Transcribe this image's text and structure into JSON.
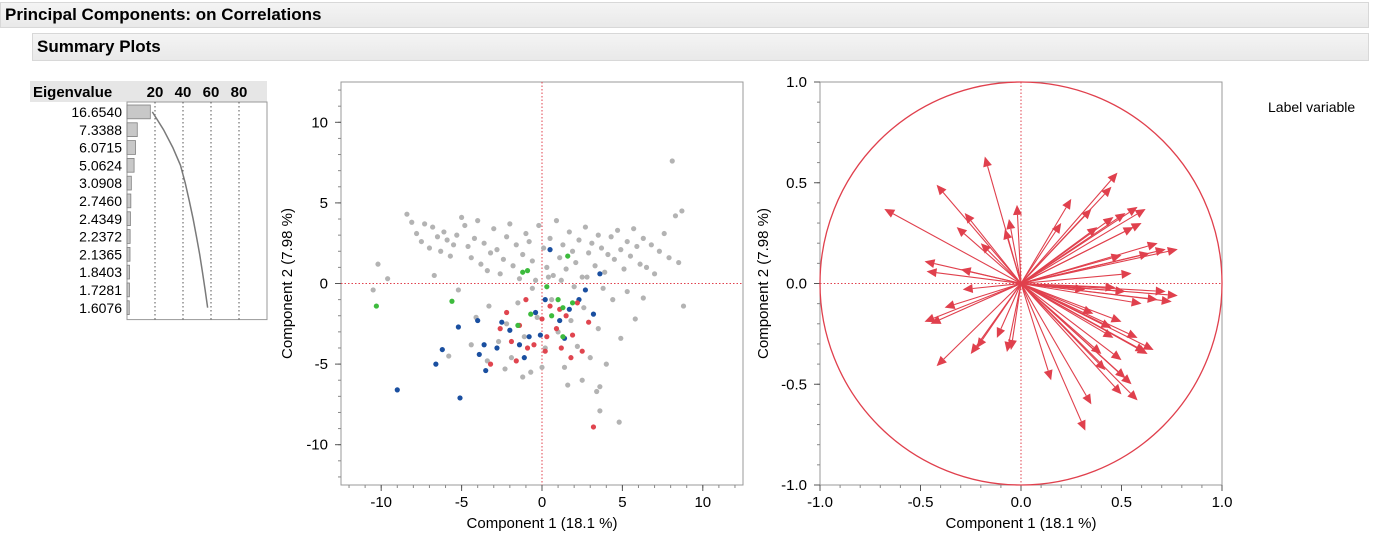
{
  "header": {
    "title": "Principal Components: on Correlations",
    "summary_title": "Summary Plots"
  },
  "label_variables": "Label variable",
  "colors": {
    "gray": "#b3b3b3",
    "blue": "#1a4fa0",
    "red": "#e0454f",
    "green": "#3dbb3d",
    "loading": "#e0404d",
    "refline": "#e0404d"
  },
  "chart_data": [
    {
      "type": "bar",
      "title": "Eigenvalue",
      "header_ticks": [
        "20",
        "40",
        "60",
        "80"
      ],
      "eigenvalues": [
        "16.6540",
        "7.3388",
        "6.0715",
        "5.0624",
        "3.0908",
        "2.7460",
        "2.4349",
        "2.2372",
        "2.1365",
        "1.8403",
        "1.7281",
        "1.6076"
      ],
      "values": [
        16.654,
        7.3388,
        6.0715,
        5.0624,
        3.0908,
        2.746,
        2.4349,
        2.2372,
        2.1365,
        1.8403,
        1.7281,
        1.6076
      ],
      "cumulative_percent": [
        18.1,
        26.1,
        32.7,
        38.2,
        41.6,
        44.5,
        47.2,
        49.6,
        51.9,
        53.9,
        55.8,
        57.6
      ],
      "xlim": [
        0,
        100
      ]
    },
    {
      "type": "scatter",
      "xlabel": "Component 1  (18.1 %)",
      "ylabel": "Component 2  (7.98 %)",
      "xlim": [
        -12.5,
        12.5
      ],
      "ylim": [
        -12.5,
        12.5
      ],
      "x_ticks": [
        "-10",
        "-5",
        "0",
        "5",
        "10"
      ],
      "y_ticks": [
        "-10",
        "-5",
        "0",
        "5",
        "10"
      ],
      "series": [
        {
          "color": "gray",
          "points": [
            [
              -10.2,
              1.2
            ],
            [
              -9.6,
              0.3
            ],
            [
              -8.4,
              4.3
            ],
            [
              -8.1,
              3.8
            ],
            [
              -7.8,
              3.1
            ],
            [
              -7.5,
              2.6
            ],
            [
              -7.3,
              3.7
            ],
            [
              -7.0,
              2.2
            ],
            [
              -6.8,
              3.5
            ],
            [
              -6.5,
              2.9
            ],
            [
              -6.3,
              2.0
            ],
            [
              -6.1,
              3.2
            ],
            [
              -5.9,
              2.7
            ],
            [
              -5.7,
              1.7
            ],
            [
              -5.5,
              2.4
            ],
            [
              -5.3,
              3.0
            ],
            [
              -5.0,
              4.1
            ],
            [
              -4.8,
              3.6
            ],
            [
              -4.6,
              2.3
            ],
            [
              -4.4,
              1.6
            ],
            [
              -4.2,
              2.8
            ],
            [
              -4.0,
              3.9
            ],
            [
              -3.8,
              1.2
            ],
            [
              -3.6,
              2.5
            ],
            [
              -3.4,
              0.8
            ],
            [
              -3.2,
              1.9
            ],
            [
              -3.0,
              3.4
            ],
            [
              -2.8,
              2.1
            ],
            [
              -2.6,
              0.6
            ],
            [
              -2.4,
              1.5
            ],
            [
              -2.2,
              2.9
            ],
            [
              -2.0,
              3.7
            ],
            [
              -1.8,
              1.1
            ],
            [
              -1.6,
              2.4
            ],
            [
              -1.4,
              0.3
            ],
            [
              -1.2,
              1.8
            ],
            [
              -1.0,
              3.1
            ],
            [
              -0.8,
              2.6
            ],
            [
              -0.6,
              1.4
            ],
            [
              -0.4,
              0.2
            ],
            [
              -0.2,
              3.6
            ],
            [
              0.1,
              2.2
            ],
            [
              0.3,
              1.0
            ],
            [
              0.5,
              2.8
            ],
            [
              0.7,
              0.5
            ],
            [
              0.9,
              3.9
            ],
            [
              1.1,
              1.6
            ],
            [
              1.3,
              2.4
            ],
            [
              1.5,
              0.9
            ],
            [
              1.7,
              3.2
            ],
            [
              1.9,
              2.0
            ],
            [
              2.1,
              1.3
            ],
            [
              2.3,
              2.7
            ],
            [
              2.5,
              0.4
            ],
            [
              2.7,
              3.5
            ],
            [
              2.9,
              1.9
            ],
            [
              3.1,
              2.5
            ],
            [
              3.3,
              1.1
            ],
            [
              3.5,
              3.0
            ],
            [
              3.7,
              2.2
            ],
            [
              3.9,
              0.7
            ],
            [
              4.1,
              1.8
            ],
            [
              4.3,
              2.9
            ],
            [
              4.5,
              1.5
            ],
            [
              4.7,
              3.3
            ],
            [
              4.9,
              2.1
            ],
            [
              5.1,
              0.9
            ],
            [
              5.3,
              2.6
            ],
            [
              5.5,
              1.7
            ],
            [
              5.7,
              3.4
            ],
            [
              5.9,
              2.3
            ],
            [
              6.1,
              1.2
            ],
            [
              6.3,
              2.8
            ],
            [
              6.5,
              1.0
            ],
            [
              6.8,
              2.4
            ],
            [
              7.0,
              0.6
            ],
            [
              7.3,
              2.0
            ],
            [
              7.6,
              3.1
            ],
            [
              7.9,
              1.6
            ],
            [
              8.1,
              7.6
            ],
            [
              8.3,
              4.2
            ],
            [
              8.5,
              1.3
            ],
            [
              8.7,
              4.5
            ],
            [
              8.8,
              -1.4
            ],
            [
              -10.5,
              -0.4
            ],
            [
              -6.7,
              0.5
            ],
            [
              -5.2,
              -0.4
            ],
            [
              -4.1,
              -2.1
            ],
            [
              -3.3,
              -1.4
            ],
            [
              -2.7,
              -3.6
            ],
            [
              -2.2,
              -2.5
            ],
            [
              -1.9,
              -4.6
            ],
            [
              -1.5,
              -1.2
            ],
            [
              -1.1,
              -3.3
            ],
            [
              -0.7,
              -5.5
            ],
            [
              -0.3,
              -2.1
            ],
            [
              0.2,
              -4.0
            ],
            [
              0.6,
              -1.0
            ],
            [
              1.0,
              -3.0
            ],
            [
              1.4,
              -5.2
            ],
            [
              1.8,
              -2.3
            ],
            [
              2.2,
              -3.9
            ],
            [
              2.6,
              -1.5
            ],
            [
              3.0,
              -4.6
            ],
            [
              3.5,
              -2.8
            ],
            [
              4.0,
              -5.0
            ],
            [
              4.4,
              -1.0
            ],
            [
              4.9,
              -3.4
            ],
            [
              5.3,
              -0.5
            ],
            [
              5.8,
              -2.2
            ],
            [
              6.3,
              -0.9
            ],
            [
              4.8,
              -8.6
            ],
            [
              3.6,
              -7.9
            ],
            [
              3.4,
              -6.7
            ],
            [
              2.5,
              -6.0
            ],
            [
              1.6,
              -6.3
            ],
            [
              3.6,
              -6.4
            ],
            [
              -5.8,
              -4.5
            ],
            [
              -4.4,
              -3.8
            ],
            [
              -3.4,
              -4.8
            ],
            [
              -2.3,
              -5.3
            ],
            [
              -1.2,
              -5.8
            ],
            [
              0.0,
              -5.2
            ],
            [
              -0.6,
              -0.3
            ],
            [
              0.4,
              0.4
            ],
            [
              1.2,
              0.2
            ],
            [
              2.0,
              -0.2
            ],
            [
              2.8,
              0.4
            ],
            [
              3.8,
              -0.3
            ]
          ]
        },
        {
          "color": "blue",
          "points": [
            [
              -9.0,
              -6.6
            ],
            [
              -6.6,
              -5.0
            ],
            [
              -5.1,
              -7.1
            ],
            [
              -6.2,
              -4.1
            ],
            [
              -5.2,
              -2.7
            ],
            [
              -4.0,
              -2.3
            ],
            [
              -3.9,
              -4.4
            ],
            [
              -3.6,
              -3.8
            ],
            [
              -3.5,
              -5.4
            ],
            [
              -2.8,
              -4.0
            ],
            [
              -2.5,
              -2.4
            ],
            [
              -2.0,
              -2.9
            ],
            [
              -1.4,
              -3.8
            ],
            [
              -1.1,
              -4.6
            ],
            [
              -0.8,
              -3.3
            ],
            [
              -0.4,
              -1.8
            ],
            [
              -0.1,
              -3.2
            ],
            [
              0.2,
              -1.0
            ],
            [
              0.5,
              2.1
            ],
            [
              1.1,
              -2.3
            ],
            [
              1.4,
              -3.4
            ],
            [
              1.7,
              -1.6
            ],
            [
              2.3,
              -1.0
            ],
            [
              2.7,
              -0.4
            ],
            [
              3.2,
              -1.9
            ],
            [
              3.6,
              0.6
            ]
          ]
        },
        {
          "color": "red",
          "points": [
            [
              -3.2,
              -5.0
            ],
            [
              -2.6,
              -2.8
            ],
            [
              -1.9,
              -3.6
            ],
            [
              -1.6,
              -4.8
            ],
            [
              -1.0,
              -1.0
            ],
            [
              -0.5,
              -3.8
            ],
            [
              0.0,
              -2.2
            ],
            [
              0.2,
              -4.2
            ],
            [
              0.5,
              -1.4
            ],
            [
              0.9,
              -2.8
            ],
            [
              1.2,
              -4.0
            ],
            [
              1.5,
              -2.0
            ],
            [
              1.9,
              -3.2
            ],
            [
              2.2,
              -1.2
            ],
            [
              2.5,
              -4.2
            ],
            [
              2.9,
              -2.4
            ],
            [
              3.2,
              -8.9
            ],
            [
              -2.2,
              -1.8
            ],
            [
              -1.4,
              -2.6
            ],
            [
              -0.9,
              -4.0
            ],
            [
              0.3,
              -3.3
            ],
            [
              1.1,
              -1.6
            ],
            [
              1.8,
              -4.6
            ]
          ]
        },
        {
          "color": "green",
          "points": [
            [
              -10.3,
              -1.4
            ],
            [
              -5.6,
              -1.1
            ],
            [
              -1.2,
              0.7
            ],
            [
              -1.5,
              -2.6
            ],
            [
              -0.7,
              -1.9
            ],
            [
              0.3,
              -0.2
            ],
            [
              0.6,
              -2.0
            ],
            [
              1.0,
              -1.0
            ],
            [
              1.3,
              -1.5
            ],
            [
              1.6,
              1.7
            ],
            [
              1.9,
              -1.2
            ],
            [
              1.3,
              -3.3
            ],
            [
              -0.9,
              0.8
            ]
          ]
        }
      ]
    },
    {
      "type": "scatter",
      "subtype": "loading-vectors",
      "xlabel": "Component 1  (18.1 %)",
      "ylabel": "Component 2  (7.98 %)",
      "xlim": [
        -1.0,
        1.0
      ],
      "ylim": [
        -1.0,
        1.0
      ],
      "x_ticks": [
        "-1.0",
        "-0.5",
        "0.0",
        "0.5",
        "1.0"
      ],
      "y_ticks": [
        "-1.0",
        "-0.5",
        "0.0",
        "0.5",
        "1.0"
      ],
      "unit_circle": true,
      "vectors": [
        [
          -0.68,
          0.37
        ],
        [
          -0.42,
          0.49
        ],
        [
          -0.18,
          0.63
        ],
        [
          0.48,
          0.55
        ],
        [
          0.45,
          0.48
        ],
        [
          0.58,
          0.38
        ],
        [
          0.62,
          0.37
        ],
        [
          0.52,
          0.35
        ],
        [
          0.46,
          0.33
        ],
        [
          0.35,
          0.37
        ],
        [
          0.6,
          0.3
        ],
        [
          0.56,
          0.28
        ],
        [
          0.68,
          0.2
        ],
        [
          0.72,
          0.17
        ],
        [
          0.78,
          0.17
        ],
        [
          0.64,
          0.15
        ],
        [
          0.5,
          0.14
        ],
        [
          0.25,
          0.42
        ],
        [
          0.38,
          0.28
        ],
        [
          0.2,
          0.3
        ],
        [
          -0.02,
          0.39
        ],
        [
          -0.08,
          0.27
        ],
        [
          -0.28,
          0.35
        ],
        [
          -0.32,
          0.28
        ],
        [
          -0.2,
          0.2
        ],
        [
          -0.06,
          0.32
        ],
        [
          -0.48,
          0.11
        ],
        [
          -0.47,
          0.06
        ],
        [
          -0.3,
          0.07
        ],
        [
          0.72,
          -0.04
        ],
        [
          0.78,
          -0.06
        ],
        [
          0.75,
          -0.09
        ],
        [
          0.68,
          -0.08
        ],
        [
          0.52,
          -0.04
        ],
        [
          0.47,
          -0.02
        ],
        [
          0.32,
          -0.03
        ],
        [
          -0.29,
          -0.03
        ],
        [
          -0.38,
          -0.12
        ],
        [
          -0.48,
          -0.19
        ],
        [
          -0.45,
          -0.2
        ],
        [
          -0.42,
          -0.41
        ],
        [
          -0.25,
          -0.35
        ],
        [
          -0.22,
          -0.32
        ],
        [
          -0.12,
          -0.27
        ],
        [
          -0.07,
          -0.34
        ],
        [
          -0.05,
          -0.33
        ],
        [
          0.5,
          -0.19
        ],
        [
          0.58,
          -0.27
        ],
        [
          0.62,
          -0.34
        ],
        [
          0.66,
          -0.33
        ],
        [
          0.63,
          -0.35
        ],
        [
          0.46,
          -0.27
        ],
        [
          0.4,
          -0.35
        ],
        [
          0.52,
          -0.47
        ],
        [
          0.55,
          -0.5
        ],
        [
          0.5,
          -0.55
        ],
        [
          0.58,
          -0.58
        ],
        [
          0.35,
          -0.6
        ],
        [
          0.32,
          -0.73
        ],
        [
          0.15,
          -0.48
        ],
        [
          0.42,
          -0.43
        ],
        [
          0.5,
          -0.38
        ],
        [
          0.45,
          -0.22
        ],
        [
          0.36,
          -0.15
        ],
        [
          0.6,
          -0.1
        ],
        [
          0.55,
          0.05
        ]
      ]
    }
  ]
}
